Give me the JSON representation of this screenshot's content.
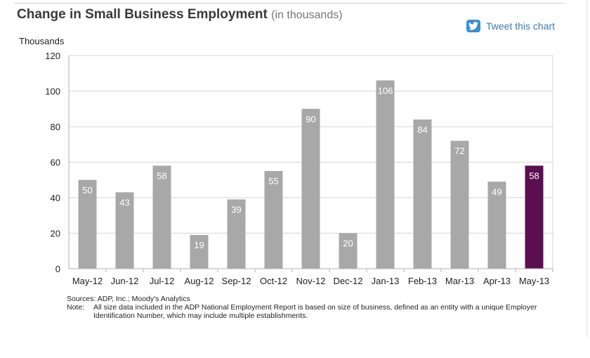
{
  "header": {
    "title": "Change in Small Business Employment",
    "subtitle": "(in thousands)",
    "tweet_label": "Tweet this chart",
    "tweet_icon": "twitter-bird-icon"
  },
  "chart_data": {
    "type": "bar",
    "ylabel": "Thousands",
    "ylim": [
      0,
      120
    ],
    "yticks": [
      0,
      20,
      40,
      60,
      80,
      100,
      120
    ],
    "grid": true,
    "categories": [
      "May-12",
      "Jun-12",
      "Jul-12",
      "Aug-12",
      "Sep-12",
      "Oct-12",
      "Nov-12",
      "Dec-12",
      "Jan-13",
      "Feb-13",
      "Mar-13",
      "Apr-13",
      "May-13"
    ],
    "values": [
      50,
      43,
      58,
      19,
      39,
      55,
      90,
      20,
      106,
      84,
      72,
      49,
      58
    ],
    "bar_color": "#a8a8a8",
    "highlight_color": "#5a1050",
    "highlight_index": 12
  },
  "footer": {
    "sources": "Sources: ADP, Inc.; Moody's Analytics",
    "note_label": "Note:",
    "note_text": "All size data included in the ADP National Employment Report is based on size of business, defined as an entity with a unique Employer Identification Number, which may include multiple establishments."
  }
}
